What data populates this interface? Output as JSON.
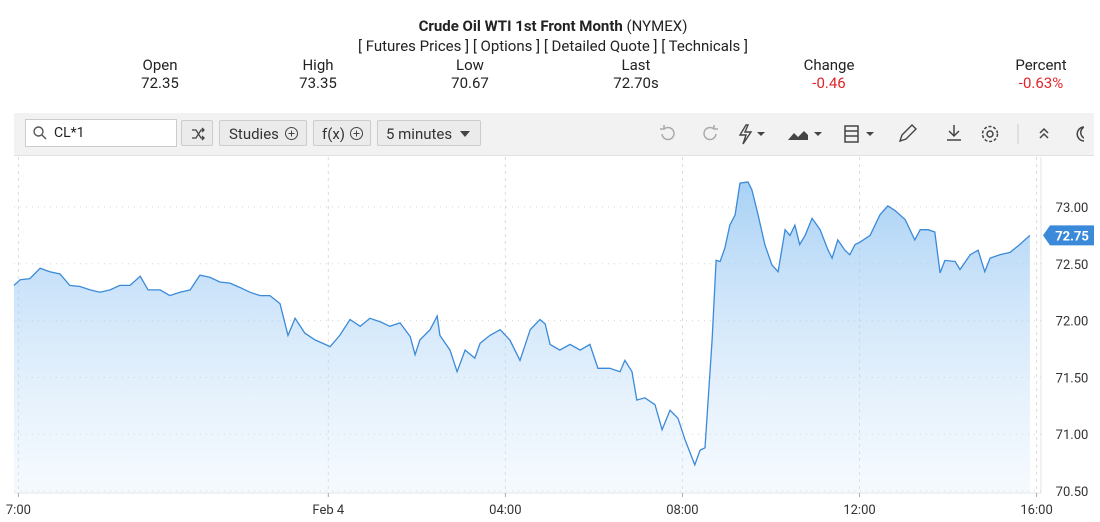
{
  "header": {
    "title": "Crude Oil WTI 1st Front Month",
    "exchange": "(NYMEX)",
    "links": [
      "[ Futures Prices ]",
      "[ Options ]",
      "[ Detailed Quote ]",
      "[ Technicals ]"
    ],
    "quote": [
      {
        "label": "Open",
        "value": "72.35"
      },
      {
        "label": "High",
        "value": "73.35"
      },
      {
        "label": "Low",
        "value": "70.67"
      },
      {
        "label": "Last",
        "value": "72.70s"
      },
      {
        "label": "Change",
        "value": "-0.46"
      },
      {
        "label": "Percent",
        "value": "-0.63%"
      }
    ]
  },
  "toolbar": {
    "symbol": "CL*1",
    "buttons": [
      "Studies",
      "f(x)",
      "5 minutes"
    ]
  },
  "chart_data": {
    "type": "line",
    "color": "#3b8ad9",
    "x": [
      -7.1,
      -6.96,
      -6.74,
      -6.51,
      -6.29,
      -6.06,
      -5.84,
      -5.61,
      -5.38,
      -5.16,
      -4.93,
      -4.71,
      -4.48,
      -4.25,
      -4.07,
      -3.8,
      -3.58,
      -3.35,
      -3.12,
      -2.9,
      -2.67,
      -2.45,
      -2.22,
      -1.99,
      -1.77,
      -1.54,
      -1.32,
      -1.09,
      -0.91,
      -0.75,
      -0.53,
      -0.3,
      -0.07,
      0.04,
      0.26,
      0.49,
      0.72,
      0.94,
      1.17,
      1.39,
      1.62,
      1.85,
      1.96,
      2.07,
      2.3,
      2.46,
      2.52,
      2.75,
      2.91,
      3.09,
      3.31,
      3.43,
      3.65,
      3.88,
      4.1,
      4.33,
      4.56,
      4.78,
      4.9,
      5.01,
      5.23,
      5.46,
      5.69,
      5.91,
      6.09,
      6.36,
      6.59,
      6.7,
      6.86,
      6.97,
      7.15,
      7.38,
      7.54,
      7.72,
      7.9,
      8.06,
      8.28,
      8.4,
      8.51,
      8.67,
      8.76,
      8.85,
      8.96,
      9.07,
      9.19,
      9.3,
      9.48,
      9.57,
      9.71,
      9.86,
      10.02,
      10.16,
      10.32,
      10.43,
      10.54,
      10.65,
      10.77,
      10.93,
      11.11,
      11.29,
      11.38,
      11.51,
      11.67,
      11.78,
      11.9,
      12.01,
      12.24,
      12.46,
      12.64,
      12.8,
      13.03,
      13.25,
      13.37,
      13.55,
      13.7,
      13.82,
      13.93,
      14.16,
      14.27,
      14.5,
      14.68,
      14.83,
      14.95,
      15.17,
      15.4,
      15.62,
      15.85
    ],
    "values": [
      72.31,
      72.36,
      72.37,
      72.46,
      72.43,
      72.41,
      72.31,
      72.3,
      72.27,
      72.25,
      72.27,
      72.31,
      72.31,
      72.39,
      72.27,
      72.27,
      72.22,
      72.25,
      72.27,
      72.4,
      72.38,
      72.34,
      72.33,
      72.29,
      72.25,
      72.22,
      72.22,
      72.15,
      71.87,
      72.02,
      71.89,
      71.83,
      71.79,
      71.77,
      71.87,
      72.01,
      71.95,
      72.02,
      71.99,
      71.95,
      71.98,
      71.86,
      71.7,
      71.83,
      71.92,
      72.04,
      71.87,
      71.74,
      71.55,
      71.74,
      71.67,
      71.8,
      71.87,
      71.92,
      71.83,
      71.65,
      71.92,
      72.01,
      71.97,
      71.79,
      71.74,
      71.79,
      71.74,
      71.79,
      71.58,
      71.58,
      71.55,
      71.65,
      71.55,
      71.3,
      71.32,
      71.26,
      71.04,
      71.21,
      71.14,
      70.95,
      70.73,
      70.86,
      70.88,
      71.83,
      72.53,
      72.52,
      72.64,
      72.84,
      72.93,
      73.21,
      73.22,
      73.15,
      72.93,
      72.67,
      72.49,
      72.43,
      72.8,
      72.75,
      72.84,
      72.67,
      72.75,
      72.9,
      72.8,
      72.62,
      72.55,
      72.71,
      72.62,
      72.58,
      72.67,
      72.69,
      72.75,
      72.93,
      73.01,
      72.97,
      72.89,
      72.71,
      72.8,
      72.8,
      72.78,
      72.42,
      72.53,
      72.52,
      72.45,
      72.58,
      72.62,
      72.43,
      72.55,
      72.58,
      72.6,
      72.67,
      72.75
    ],
    "xlim": [
      -7.1,
      16.1
    ],
    "ylim": [
      70.5,
      73.44
    ],
    "xticks": [
      {
        "value": -7,
        "label": "7:00"
      },
      {
        "value": 0,
        "label": "Feb 4"
      },
      {
        "value": 4,
        "label": "04:00"
      },
      {
        "value": 8,
        "label": "08:00"
      },
      {
        "value": 12,
        "label": "12:00"
      },
      {
        "value": 16,
        "label": "16:00"
      }
    ],
    "yticks": [
      {
        "value": 70.5,
        "label": "70.50"
      },
      {
        "value": 71,
        "label": "71.00"
      },
      {
        "value": 71.5,
        "label": "71.50"
      },
      {
        "value": 72,
        "label": "72.00"
      },
      {
        "value": 72.5,
        "label": "72.50"
      },
      {
        "value": 73,
        "label": "73.00"
      }
    ],
    "grid": true
  }
}
